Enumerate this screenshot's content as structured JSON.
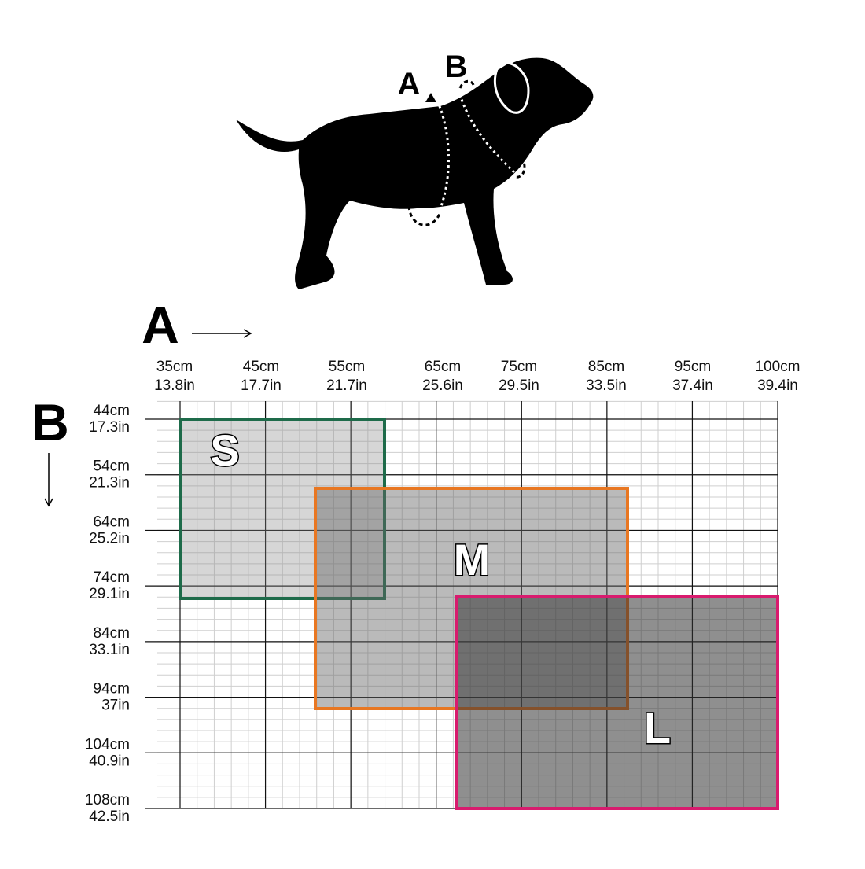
{
  "dog_labels": [
    "A",
    "B"
  ],
  "axis_a": {
    "label": "A",
    "columns": [
      {
        "cm": "35cm",
        "in": "13.8in"
      },
      {
        "cm": "45cm",
        "in": "17.7in"
      },
      {
        "cm": "55cm",
        "in": "21.7in"
      },
      {
        "cm": "65cm",
        "in": "25.6in"
      },
      {
        "cm": "75cm",
        "in": "29.5in"
      },
      {
        "cm": "85cm",
        "in": "33.5in"
      },
      {
        "cm": "95cm",
        "in": "37.4in"
      },
      {
        "cm": "100cm",
        "in": "39.4in"
      }
    ]
  },
  "axis_b": {
    "label": "B",
    "rows": [
      {
        "cm": "44cm",
        "in": "17.3in"
      },
      {
        "cm": "54cm",
        "in": "21.3in"
      },
      {
        "cm": "64cm",
        "in": "25.2in"
      },
      {
        "cm": "74cm",
        "in": "29.1in"
      },
      {
        "cm": "84cm",
        "in": "33.1in"
      },
      {
        "cm": "94cm",
        "in": "37in"
      },
      {
        "cm": "104cm",
        "in": "40.9in"
      },
      {
        "cm": "108cm",
        "in": "42.5in"
      }
    ]
  },
  "sizes": [
    "S",
    "M",
    "L"
  ]
}
